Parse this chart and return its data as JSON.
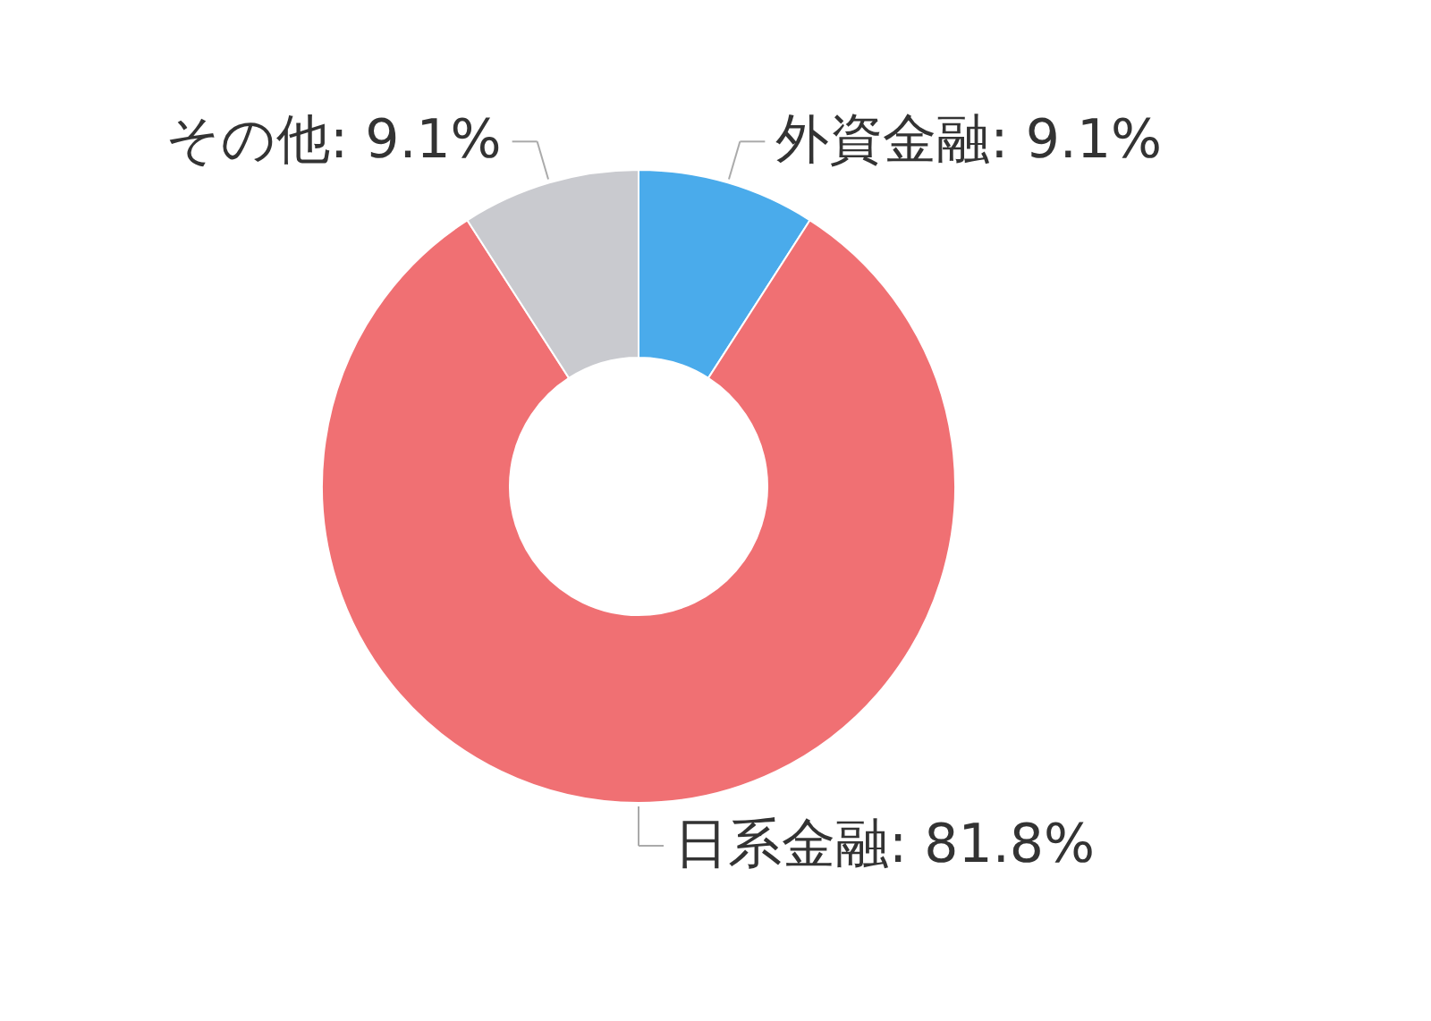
{
  "chart_data": {
    "type": "donut",
    "categories": [
      "外資金融",
      "日系金融",
      "その他"
    ],
    "values": [
      9.1,
      81.8,
      9.1
    ],
    "colors": [
      "#4aabeb",
      "#f07073",
      "#c9cacf"
    ],
    "value_labels": [
      "9.1%",
      "81.8%",
      "9.1%"
    ],
    "data_labels": true
  }
}
